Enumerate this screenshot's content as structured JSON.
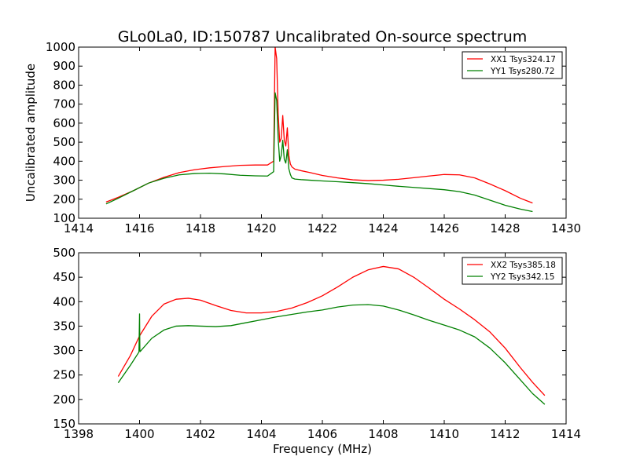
{
  "figure": {
    "title": "GLo0La0, ID:150787 Uncalibrated On-source spectrum"
  },
  "chart_data": [
    {
      "type": "line",
      "title": "GLo0La0, ID:150787 Uncalibrated On-source spectrum",
      "xlabel": "",
      "ylabel": "Uncalibrated amplitude",
      "xlim": [
        1414,
        1430
      ],
      "ylim": [
        100,
        1000
      ],
      "xticks": [
        1414,
        1416,
        1418,
        1420,
        1422,
        1424,
        1426,
        1428,
        1430
      ],
      "yticks": [
        100,
        200,
        300,
        400,
        500,
        600,
        700,
        800,
        900,
        1000
      ],
      "xtick_labels": [
        "1414",
        "1416",
        "1418",
        "1420",
        "1422",
        "1424",
        "1426",
        "1428",
        "1430"
      ],
      "ytick_labels": [
        "100",
        "200",
        "300",
        "400",
        "500",
        "600",
        "700",
        "800",
        "900",
        "1000"
      ],
      "legend_position": "top-right",
      "grid": false,
      "series": [
        {
          "name": "XX1 Tsys324.17",
          "color": "#ff0000",
          "x": [
            1414.9,
            1415.3,
            1415.8,
            1416.3,
            1416.8,
            1417.3,
            1417.8,
            1418.3,
            1418.8,
            1419.3,
            1419.8,
            1420.2,
            1420.4,
            1420.45,
            1420.5,
            1420.55,
            1420.6,
            1420.65,
            1420.7,
            1420.75,
            1420.8,
            1420.85,
            1420.9,
            1420.95,
            1421.0,
            1421.1,
            1421.3,
            1421.6,
            1422.0,
            1422.5,
            1423.0,
            1423.5,
            1424.0,
            1424.5,
            1425.0,
            1425.5,
            1426.0,
            1426.5,
            1427.0,
            1427.5,
            1428.0,
            1428.5,
            1428.9
          ],
          "y": [
            185,
            210,
            245,
            285,
            315,
            340,
            355,
            365,
            372,
            378,
            380,
            380,
            400,
            1000,
            940,
            650,
            500,
            520,
            640,
            510,
            480,
            575,
            430,
            385,
            370,
            358,
            350,
            340,
            325,
            312,
            302,
            298,
            300,
            305,
            313,
            322,
            330,
            328,
            312,
            280,
            245,
            205,
            180
          ]
        },
        {
          "name": "YY1 Tsys280.72",
          "color": "#008000",
          "x": [
            1414.9,
            1415.3,
            1415.8,
            1416.3,
            1416.8,
            1417.3,
            1417.8,
            1418.3,
            1418.8,
            1419.3,
            1419.8,
            1420.2,
            1420.4,
            1420.45,
            1420.5,
            1420.55,
            1420.6,
            1420.65,
            1420.7,
            1420.75,
            1420.8,
            1420.85,
            1420.9,
            1420.95,
            1421.0,
            1421.1,
            1421.3,
            1421.6,
            1422.0,
            1422.5,
            1423.0,
            1423.5,
            1424.0,
            1424.5,
            1425.0,
            1425.5,
            1426.0,
            1426.5,
            1427.0,
            1427.5,
            1428.0,
            1428.5,
            1428.9
          ],
          "y": [
            175,
            205,
            245,
            285,
            310,
            328,
            335,
            337,
            333,
            326,
            323,
            322,
            345,
            760,
            720,
            520,
            400,
            430,
            510,
            410,
            390,
            460,
            360,
            330,
            312,
            306,
            303,
            300,
            296,
            292,
            287,
            282,
            275,
            268,
            262,
            256,
            250,
            240,
            222,
            195,
            168,
            148,
            135
          ]
        }
      ]
    },
    {
      "type": "line",
      "title": "",
      "xlabel": "Frequency (MHz)",
      "ylabel": "",
      "xlim": [
        1398,
        1414
      ],
      "ylim": [
        150,
        500
      ],
      "xticks": [
        1398,
        1400,
        1402,
        1404,
        1406,
        1408,
        1410,
        1412,
        1414
      ],
      "yticks": [
        150,
        200,
        250,
        300,
        350,
        400,
        450,
        500
      ],
      "xtick_labels": [
        "1398",
        "1400",
        "1402",
        "1404",
        "1406",
        "1408",
        "1410",
        "1412",
        "1414"
      ],
      "ytick_labels": [
        "150",
        "200",
        "250",
        "300",
        "350",
        "400",
        "450",
        "500"
      ],
      "legend_position": "top-right",
      "grid": false,
      "series": [
        {
          "name": "XX2 Tsys385.18",
          "color": "#ff0000",
          "x": [
            1399.3,
            1399.7,
            1400.0,
            1400.4,
            1400.8,
            1401.2,
            1401.6,
            1402.0,
            1402.5,
            1403.0,
            1403.5,
            1404.0,
            1404.5,
            1405.0,
            1405.5,
            1406.0,
            1406.5,
            1407.0,
            1407.5,
            1408.0,
            1408.5,
            1409.0,
            1409.5,
            1410.0,
            1410.5,
            1411.0,
            1411.5,
            1412.0,
            1412.5,
            1412.9,
            1413.3
          ],
          "y": [
            247,
            290,
            330,
            370,
            395,
            405,
            407,
            403,
            392,
            382,
            377,
            377,
            380,
            387,
            398,
            412,
            430,
            450,
            465,
            472,
            467,
            450,
            428,
            405,
            385,
            363,
            338,
            305,
            265,
            235,
            208
          ]
        },
        {
          "name": "YY2 Tsys342.15",
          "color": "#008000",
          "x": [
            1399.3,
            1399.7,
            1399.98,
            1400.0,
            1400.01,
            1400.02,
            1400.4,
            1400.8,
            1401.2,
            1401.6,
            1402.0,
            1402.5,
            1403.0,
            1403.5,
            1404.0,
            1404.5,
            1405.0,
            1405.5,
            1406.0,
            1406.5,
            1407.0,
            1407.5,
            1408.0,
            1408.5,
            1409.0,
            1409.5,
            1410.0,
            1410.5,
            1411.0,
            1411.5,
            1412.0,
            1412.5,
            1412.9,
            1413.3
          ],
          "y": [
            234,
            270,
            297,
            375,
            300,
            298,
            325,
            342,
            350,
            351,
            350,
            349,
            351,
            357,
            363,
            369,
            374,
            379,
            383,
            389,
            393,
            394,
            391,
            383,
            373,
            362,
            352,
            342,
            328,
            305,
            275,
            240,
            212,
            190
          ]
        }
      ]
    }
  ]
}
